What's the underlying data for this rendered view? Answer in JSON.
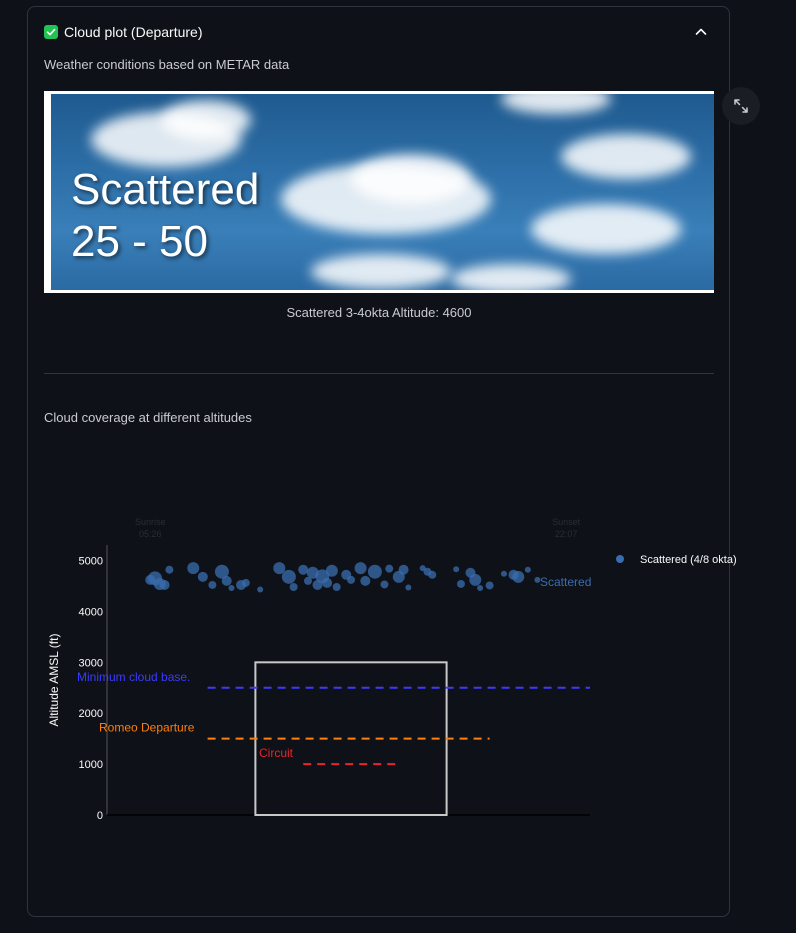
{
  "expander": {
    "title": "Cloud plot (Departure)",
    "checked": true
  },
  "weather_caption": "Weather conditions based on METAR data",
  "banner": {
    "line1": "Scattered",
    "line2": "25 - 50"
  },
  "image_caption": "Scattered 3-4okta Altitude: 4600",
  "coverage_caption": "Cloud coverage at different altitudes",
  "colors": {
    "min_cloud": "#3b3bff",
    "romeo": "#ff7f0e",
    "circuit": "#e8252b",
    "scattered": "#3a6db0",
    "box": "#c8c8c8"
  },
  "chart_data": {
    "type": "scatter",
    "ylabel": "Altitude AMSL (ft)",
    "yticks": [
      0,
      1000,
      2000,
      3000,
      4000,
      5000
    ],
    "ylim": [
      0,
      5600
    ],
    "xlim": [
      0,
      100
    ],
    "top_labels": [
      {
        "line1": "Sunrise",
        "line2": "05:26",
        "x": 8
      },
      {
        "line1": "Sunset",
        "line2": "22:07",
        "x": 95
      }
    ],
    "legend": [
      {
        "name": "Scattered (4/8 okta)"
      }
    ],
    "series_label": "Scattered",
    "cloud_layer": {
      "name": "Scattered (4/8 okta)",
      "altitude": 4600
    },
    "cloud_points": [
      [
        8,
        4620,
        5
      ],
      [
        9,
        4650,
        7
      ],
      [
        10,
        4540,
        6
      ],
      [
        11,
        4520,
        5
      ],
      [
        12,
        4820,
        4
      ],
      [
        17,
        4850,
        6
      ],
      [
        19,
        4680,
        5
      ],
      [
        21,
        4520,
        4
      ],
      [
        23,
        4780,
        7
      ],
      [
        24,
        4600,
        5
      ],
      [
        25,
        4460,
        3
      ],
      [
        27,
        4520,
        5
      ],
      [
        28,
        4560,
        4
      ],
      [
        31,
        4430,
        3
      ],
      [
        35,
        4850,
        6
      ],
      [
        37,
        4680,
        7
      ],
      [
        38,
        4480,
        4
      ],
      [
        40,
        4820,
        5
      ],
      [
        41,
        4600,
        4
      ],
      [
        42,
        4760,
        6
      ],
      [
        43,
        4520,
        5
      ],
      [
        44,
        4690,
        7
      ],
      [
        45,
        4560,
        5
      ],
      [
        46,
        4800,
        6
      ],
      [
        47,
        4480,
        4
      ],
      [
        49,
        4720,
        5
      ],
      [
        50,
        4620,
        4
      ],
      [
        52,
        4850,
        6
      ],
      [
        53,
        4600,
        5
      ],
      [
        55,
        4780,
        7
      ],
      [
        57,
        4530,
        4
      ],
      [
        58,
        4840,
        4
      ],
      [
        60,
        4680,
        6
      ],
      [
        61,
        4820,
        5
      ],
      [
        62,
        4470,
        3
      ],
      [
        65,
        4850,
        3
      ],
      [
        66,
        4780,
        4
      ],
      [
        67,
        4720,
        4
      ],
      [
        72,
        4830,
        3
      ],
      [
        73,
        4540,
        4
      ],
      [
        75,
        4760,
        5
      ],
      [
        76,
        4620,
        6
      ],
      [
        77,
        4460,
        3
      ],
      [
        79,
        4510,
        4
      ],
      [
        82,
        4740,
        3
      ],
      [
        84,
        4720,
        5
      ],
      [
        85,
        4680,
        6
      ],
      [
        87,
        4820,
        3
      ],
      [
        89,
        4620,
        3
      ]
    ],
    "lines": [
      {
        "name": "Minimum cloud base.",
        "y": 2500,
        "x0": 20,
        "x1": 100,
        "color": "#3b3bff"
      },
      {
        "name": "Romeo Departure",
        "y": 1500,
        "x0": 20,
        "x1": 79,
        "color": "#ff7f0e"
      },
      {
        "name": "Circuit",
        "y": 1000,
        "x0": 40,
        "x1": 60,
        "color": "#e8252b"
      }
    ],
    "box": {
      "x0": 30,
      "x1": 70,
      "y": 3000
    }
  }
}
